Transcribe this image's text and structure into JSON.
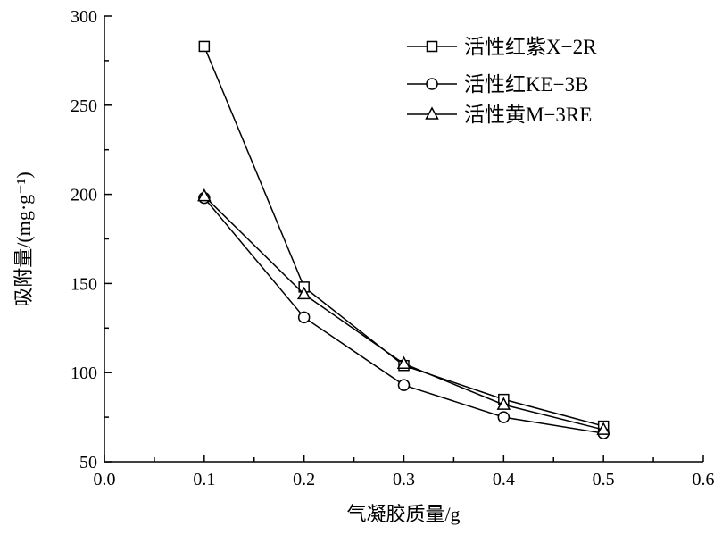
{
  "chart_data": {
    "type": "line",
    "title": "",
    "xlabel": "气凝胶质量/g",
    "ylabel": "吸附量/(mg·g⁻¹)",
    "xlim": [
      0.0,
      0.6
    ],
    "ylim": [
      50,
      300
    ],
    "xticks": [
      "0.0",
      "0.1",
      "0.2",
      "0.3",
      "0.4",
      "0.5",
      "0.6"
    ],
    "yticks": [
      "50",
      "100",
      "150",
      "200",
      "250",
      "300"
    ],
    "grid": false,
    "legend_position": "top-right",
    "x": [
      0.1,
      0.2,
      0.3,
      0.4,
      0.5
    ],
    "series": [
      {
        "name": "活性红紫X−2R",
        "marker": "square",
        "values": [
          283,
          148,
          104,
          85,
          70
        ]
      },
      {
        "name": "活性红KE−3B",
        "marker": "circle",
        "values": [
          198,
          131,
          93,
          75,
          66
        ]
      },
      {
        "name": "活性黄M−3RE",
        "marker": "triangle",
        "values": [
          199,
          144,
          105,
          82,
          68
        ]
      }
    ],
    "colors": {
      "line": "#000000",
      "marker_fill": "#ffffff"
    }
  }
}
